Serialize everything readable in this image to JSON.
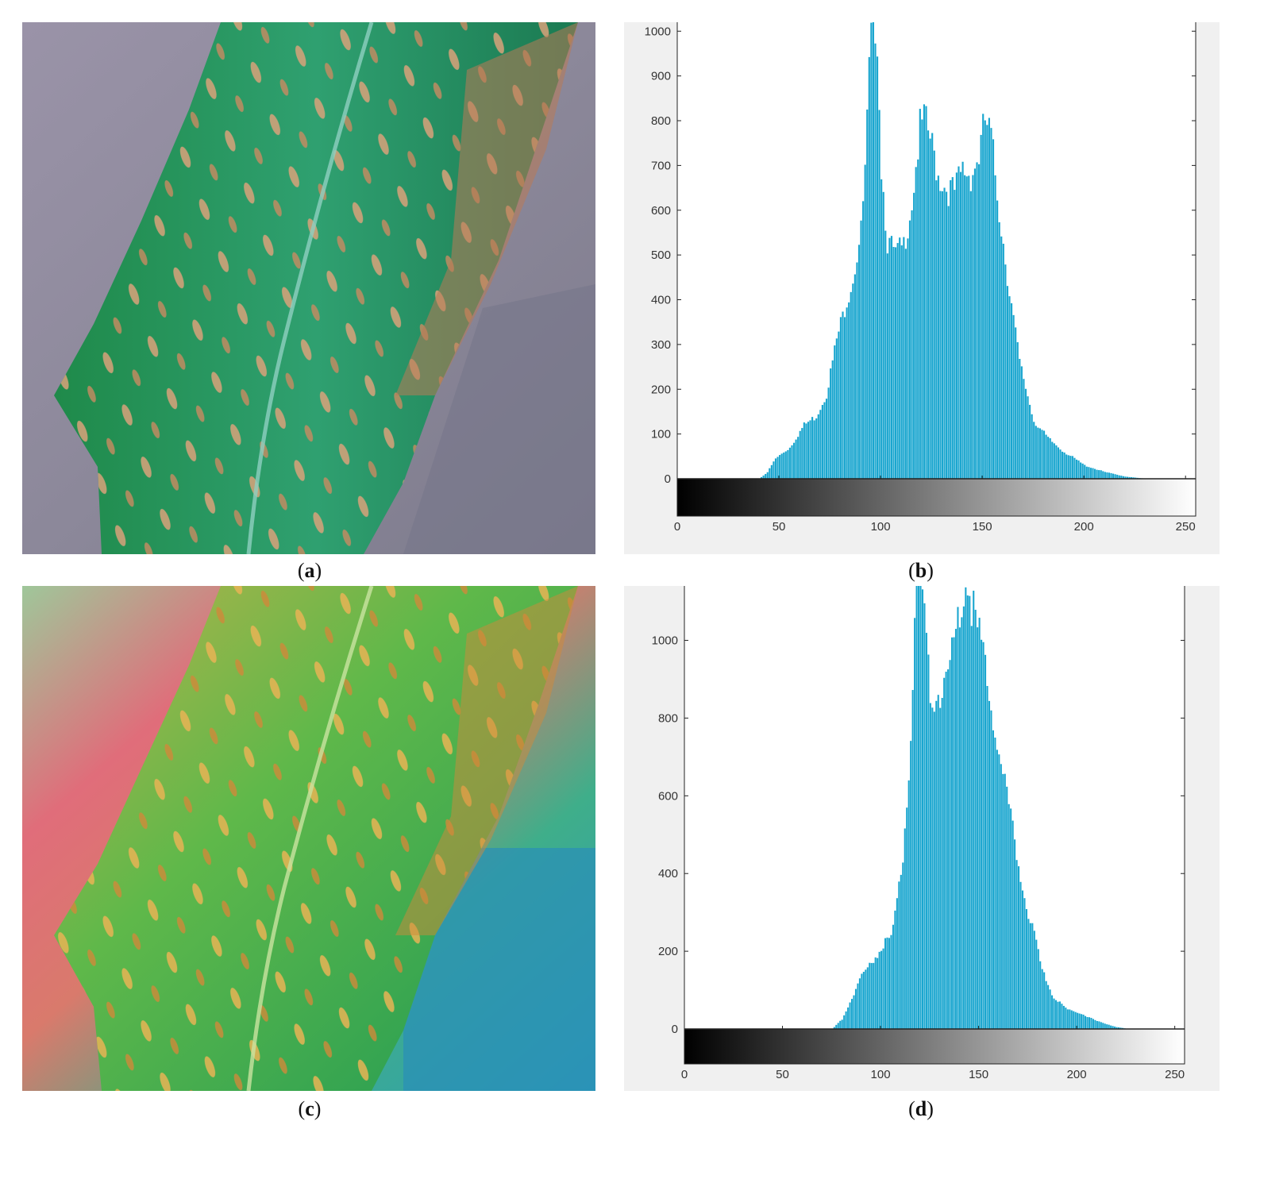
{
  "panels": [
    {
      "id": "a",
      "caption_open": "(",
      "caption_letter": "a",
      "caption_close": ")"
    },
    {
      "id": "b",
      "caption_open": "(",
      "caption_letter": "b",
      "caption_close": ")"
    },
    {
      "id": "c",
      "caption_open": "(",
      "caption_letter": "c",
      "caption_close": ")"
    },
    {
      "id": "d",
      "caption_open": "(",
      "caption_letter": "d",
      "caption_close": ")"
    }
  ],
  "colors": {
    "bar": "#1aa6cf",
    "panel_bg": "#f0f0f0",
    "plot_bg": "#ffffff",
    "leaf_green": "#2f9a5e",
    "background_gray": "#8f8a9e"
  },
  "chart_data": [
    {
      "type": "bar",
      "panel": "b",
      "title": "",
      "xlabel": "",
      "ylabel": "",
      "xlim": [
        0,
        255
      ],
      "ylim": [
        -90,
        1020
      ],
      "x_ticks": [
        0,
        50,
        100,
        150,
        200,
        250
      ],
      "y_ticks": [
        0,
        100,
        200,
        300,
        400,
        500,
        600,
        700,
        800,
        900,
        1000
      ],
      "colorbar": "grayscale 0-255 below axis",
      "profile_points": [
        [
          0,
          0
        ],
        [
          40,
          0
        ],
        [
          44,
          15
        ],
        [
          48,
          45
        ],
        [
          55,
          70
        ],
        [
          62,
          120
        ],
        [
          68,
          140
        ],
        [
          73,
          190
        ],
        [
          78,
          310
        ],
        [
          83,
          400
        ],
        [
          86,
          450
        ],
        [
          90,
          550
        ],
        [
          92,
          680
        ],
        [
          94,
          900
        ],
        [
          96,
          1050
        ],
        [
          98,
          1000
        ],
        [
          100,
          700
        ],
        [
          103,
          530
        ],
        [
          107,
          500
        ],
        [
          111,
          520
        ],
        [
          115,
          620
        ],
        [
          119,
          780
        ],
        [
          121,
          800
        ],
        [
          124,
          760
        ],
        [
          128,
          680
        ],
        [
          132,
          650
        ],
        [
          136,
          640
        ],
        [
          140,
          690
        ],
        [
          144,
          680
        ],
        [
          148,
          720
        ],
        [
          151,
          800
        ],
        [
          154,
          760
        ],
        [
          158,
          600
        ],
        [
          163,
          420
        ],
        [
          168,
          260
        ],
        [
          175,
          130
        ],
        [
          182,
          90
        ],
        [
          190,
          60
        ],
        [
          200,
          30
        ],
        [
          210,
          15
        ],
        [
          220,
          5
        ],
        [
          230,
          0
        ],
        [
          255,
          0
        ]
      ]
    },
    {
      "type": "bar",
      "panel": "d",
      "title": "",
      "xlabel": "",
      "ylabel": "",
      "xlim": [
        0,
        255
      ],
      "ylim": [
        -90,
        1140
      ],
      "x_ticks": [
        0,
        50,
        100,
        150,
        200,
        250
      ],
      "y_ticks": [
        0,
        200,
        400,
        600,
        800,
        1000
      ],
      "colorbar": "grayscale 0-255 below axis",
      "profile_points": [
        [
          0,
          0
        ],
        [
          75,
          0
        ],
        [
          80,
          25
        ],
        [
          85,
          80
        ],
        [
          90,
          140
        ],
        [
          95,
          170
        ],
        [
          100,
          210
        ],
        [
          105,
          240
        ],
        [
          108,
          320
        ],
        [
          111,
          450
        ],
        [
          114,
          650
        ],
        [
          117,
          1000
        ],
        [
          119,
          1200
        ],
        [
          122,
          1050
        ],
        [
          125,
          860
        ],
        [
          128,
          850
        ],
        [
          131,
          880
        ],
        [
          135,
          930
        ],
        [
          139,
          1060
        ],
        [
          143,
          1150
        ],
        [
          146,
          1100
        ],
        [
          150,
          1000
        ],
        [
          154,
          900
        ],
        [
          158,
          780
        ],
        [
          162,
          650
        ],
        [
          166,
          540
        ],
        [
          170,
          420
        ],
        [
          174,
          320
        ],
        [
          178,
          240
        ],
        [
          182,
          150
        ],
        [
          188,
          80
        ],
        [
          195,
          50
        ],
        [
          202,
          40
        ],
        [
          210,
          20
        ],
        [
          220,
          5
        ],
        [
          226,
          0
        ],
        [
          255,
          0
        ]
      ]
    }
  ]
}
